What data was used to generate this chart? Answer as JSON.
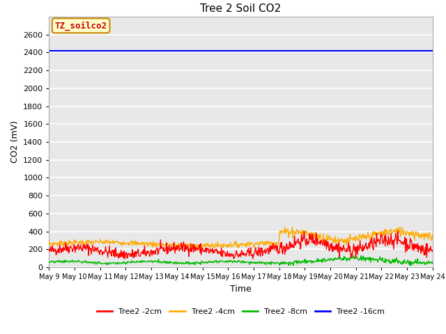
{
  "title": "Tree 2 Soil CO2",
  "xlabel": "Time",
  "ylabel": "CO2 (mV)",
  "ylim": [
    0,
    2800
  ],
  "yticks": [
    0,
    200,
    400,
    600,
    800,
    1000,
    1200,
    1400,
    1600,
    1800,
    2000,
    2200,
    2400,
    2600
  ],
  "xtick_labels": [
    "May 9",
    "May 10",
    "May 11",
    "May 12",
    "May 13",
    "May 14",
    "May 15",
    "May 16",
    "May 17",
    "May 18",
    "May 19",
    "May 20",
    "May 21",
    "May 22",
    "May 23",
    "May 24"
  ],
  "annotation_text": "TZ_soilco2",
  "annotation_box_color": "#ffffcc",
  "annotation_box_edge": "#cc8800",
  "annotation_text_color": "#cc0000",
  "colors": {
    "red": "#ff0000",
    "orange": "#ffaa00",
    "green": "#00bb00",
    "blue": "#0000ff"
  },
  "legend_labels": [
    "Tree2 -2cm",
    "Tree2 -4cm",
    "Tree2 -8cm",
    "Tree2 -16cm"
  ],
  "background_color": "#e8e8e8",
  "grid_color": "#ffffff",
  "blue_line_value": 2420,
  "seed_red": 42,
  "seed_orange": 7,
  "seed_green": 13,
  "n_days": 15,
  "points_per_day": 48
}
